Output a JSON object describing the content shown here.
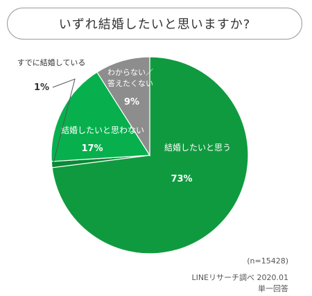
{
  "chart_data": {
    "type": "pie",
    "title": "いずれ結婚したいと思いますか?",
    "slices": [
      {
        "label": "結婚したいと思う",
        "value": 73,
        "value_label": "73%",
        "color": "#109a3f"
      },
      {
        "label": "すでに結婚している",
        "value": 1,
        "value_label": "1%",
        "color": "#0a8a35"
      },
      {
        "label": "結婚したいと思わない",
        "value": 17,
        "value_label": "17%",
        "color": "#07b04d"
      },
      {
        "label": "わからない／答えたくない",
        "label_lines": [
          "わからない／",
          "答えたくない"
        ],
        "value": 9,
        "value_label": "9%",
        "color": "#8d8d8d"
      }
    ],
    "start_angle": "12 o'clock",
    "direction": "clockwise"
  },
  "notes": {
    "sample": "(n=15428)",
    "source": "LINEリサーチ調べ 2020.01",
    "answer_type": "単一回答"
  }
}
